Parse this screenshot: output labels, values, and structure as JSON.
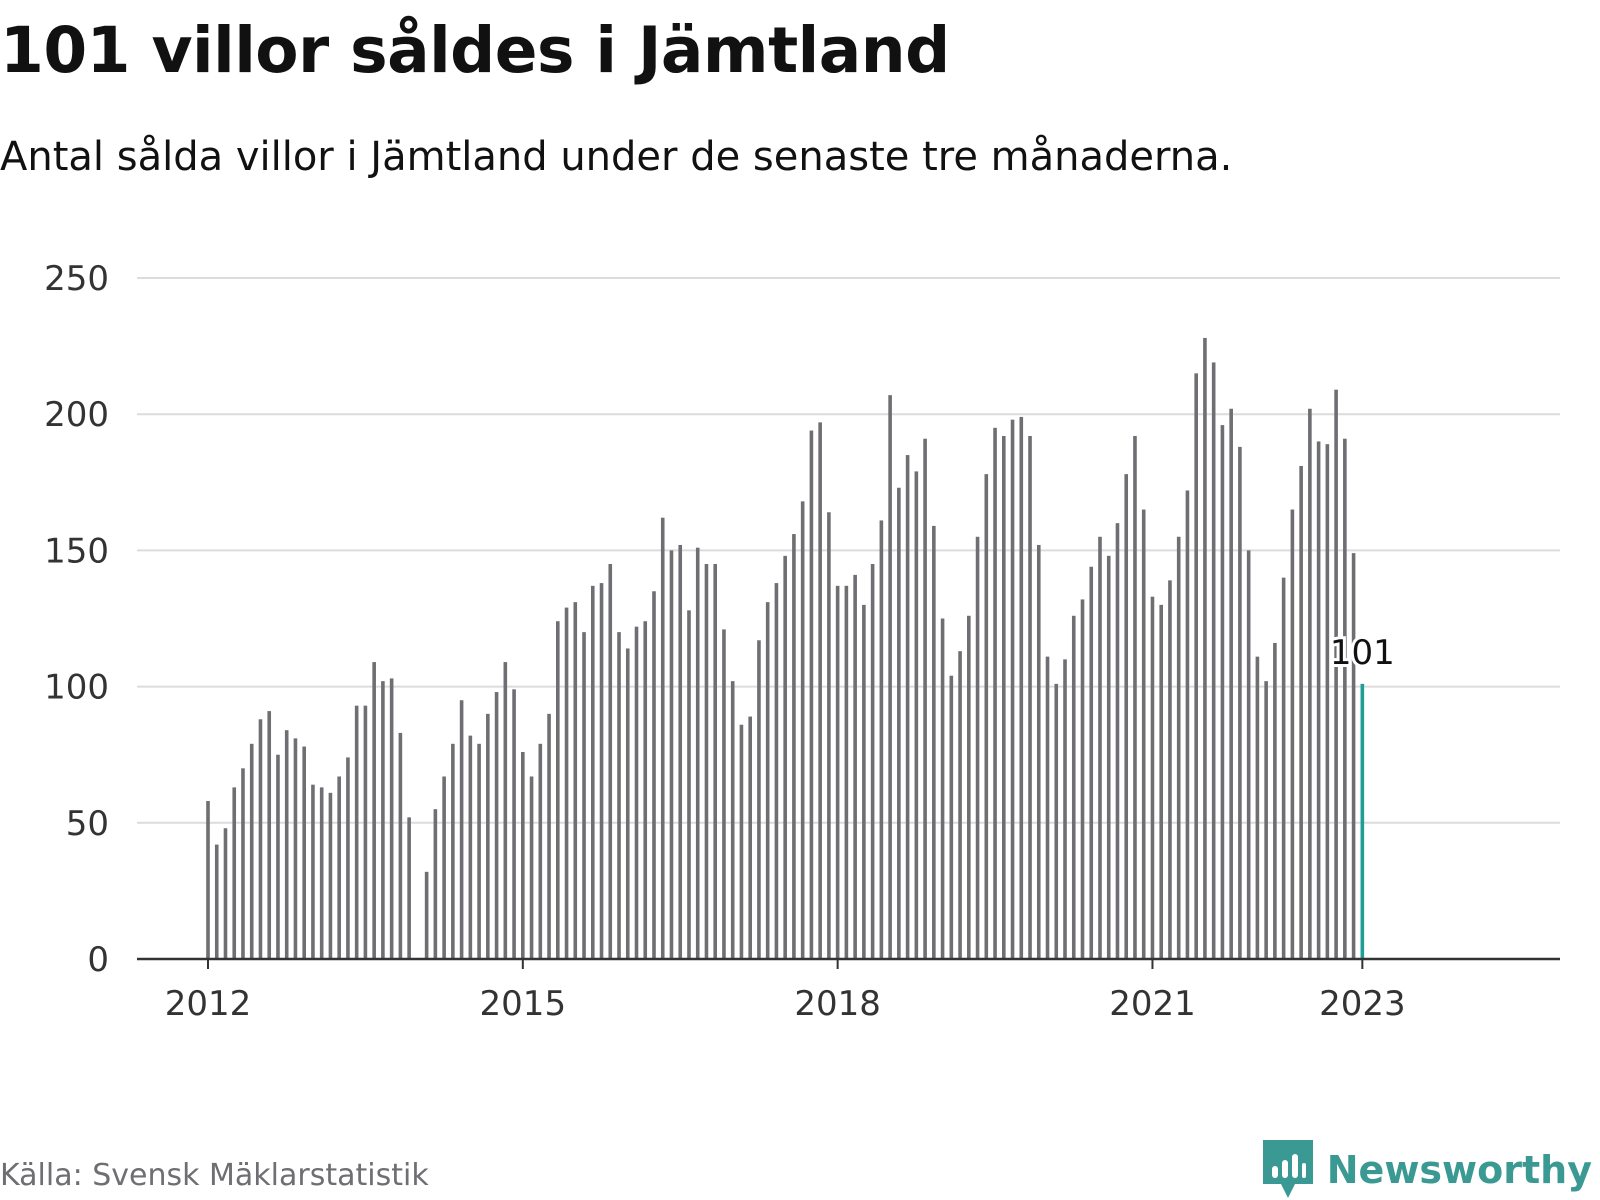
{
  "title": "101 villor såldes i Jämtland",
  "subtitle": "Antal sålda villor i Jämtland under de senaste tre månaderna.",
  "source": "Källa: Svensk Mäklarstatistik",
  "brand": "Newsworthy",
  "colors": {
    "bar": "#6e6e73",
    "highlight": "#1f9e97",
    "brand": "#3a9a93",
    "grid": "#dcdcdc",
    "axis": "#333333"
  },
  "chart_data": {
    "type": "bar",
    "start": "2012-01",
    "x_tick_labels": [
      "2012",
      "2015",
      "2018",
      "2021",
      "2023"
    ],
    "y_ticks": [
      0,
      50,
      100,
      150,
      200,
      250
    ],
    "ylim": [
      0,
      250
    ],
    "grid": true,
    "highlight_label": "101",
    "values": [
      58,
      42,
      48,
      63,
      70,
      79,
      88,
      91,
      75,
      84,
      81,
      78,
      64,
      63,
      61,
      67,
      74,
      93,
      93,
      109,
      102,
      103,
      83,
      52,
      null,
      32,
      55,
      67,
      79,
      95,
      82,
      79,
      90,
      98,
      109,
      99,
      76,
      67,
      79,
      90,
      124,
      129,
      131,
      120,
      137,
      138,
      145,
      120,
      114,
      122,
      124,
      135,
      162,
      150,
      152,
      128,
      151,
      145,
      145,
      121,
      102,
      86,
      89,
      117,
      131,
      138,
      148,
      156,
      168,
      194,
      197,
      164,
      137,
      137,
      141,
      130,
      145,
      161,
      207,
      173,
      185,
      179,
      191,
      159,
      125,
      104,
      113,
      126,
      155,
      178,
      195,
      192,
      198,
      199,
      192,
      152,
      111,
      101,
      110,
      126,
      132,
      144,
      155,
      148,
      160,
      178,
      192,
      165,
      133,
      130,
      139,
      155,
      172,
      215,
      228,
      219,
      196,
      202,
      188,
      150,
      111,
      102,
      116,
      140,
      165,
      181,
      202,
      190,
      189,
      209,
      191,
      149,
      101
    ]
  }
}
